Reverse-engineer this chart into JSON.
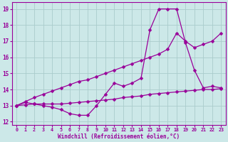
{
  "line1": [
    13.0,
    13.2,
    13.1,
    13.0,
    12.9,
    12.75,
    12.5,
    12.4,
    12.4,
    13.0,
    13.7,
    14.4,
    14.2,
    14.4,
    14.7,
    17.7,
    19.0,
    19.0,
    19.0,
    16.9,
    15.2,
    14.1,
    14.2,
    14.1
  ],
  "line2": [
    13.0,
    13.25,
    13.5,
    13.7,
    13.9,
    14.1,
    14.3,
    14.5,
    14.6,
    14.8,
    15.0,
    15.2,
    15.4,
    15.6,
    15.8,
    16.0,
    16.2,
    16.5,
    17.5,
    17.0,
    16.6,
    16.8,
    17.0,
    17.5
  ],
  "line3": [
    13.0,
    13.05,
    13.1,
    13.1,
    13.1,
    13.1,
    13.15,
    13.2,
    13.25,
    13.3,
    13.35,
    13.4,
    13.5,
    13.55,
    13.6,
    13.7,
    13.75,
    13.8,
    13.85,
    13.9,
    13.95,
    14.0,
    14.0,
    14.05
  ],
  "x": [
    0,
    1,
    2,
    3,
    4,
    5,
    6,
    7,
    8,
    9,
    10,
    11,
    12,
    13,
    14,
    15,
    16,
    17,
    18,
    19,
    20,
    21,
    22,
    23
  ],
  "color": "#990099",
  "bg_color": "#cce8e8",
  "xlabel": "Windchill (Refroidissement éolien,°C)",
  "ylim": [
    11.8,
    19.4
  ],
  "xlim": [
    -0.5,
    23.5
  ],
  "yticks": [
    12,
    13,
    14,
    15,
    16,
    17,
    18,
    19
  ],
  "xticks": [
    0,
    1,
    2,
    3,
    4,
    5,
    6,
    7,
    8,
    9,
    10,
    11,
    12,
    13,
    14,
    15,
    16,
    17,
    18,
    19,
    20,
    21,
    22,
    23
  ],
  "grid_color": "#aacccc",
  "markersize": 2.5,
  "linewidth": 0.9
}
